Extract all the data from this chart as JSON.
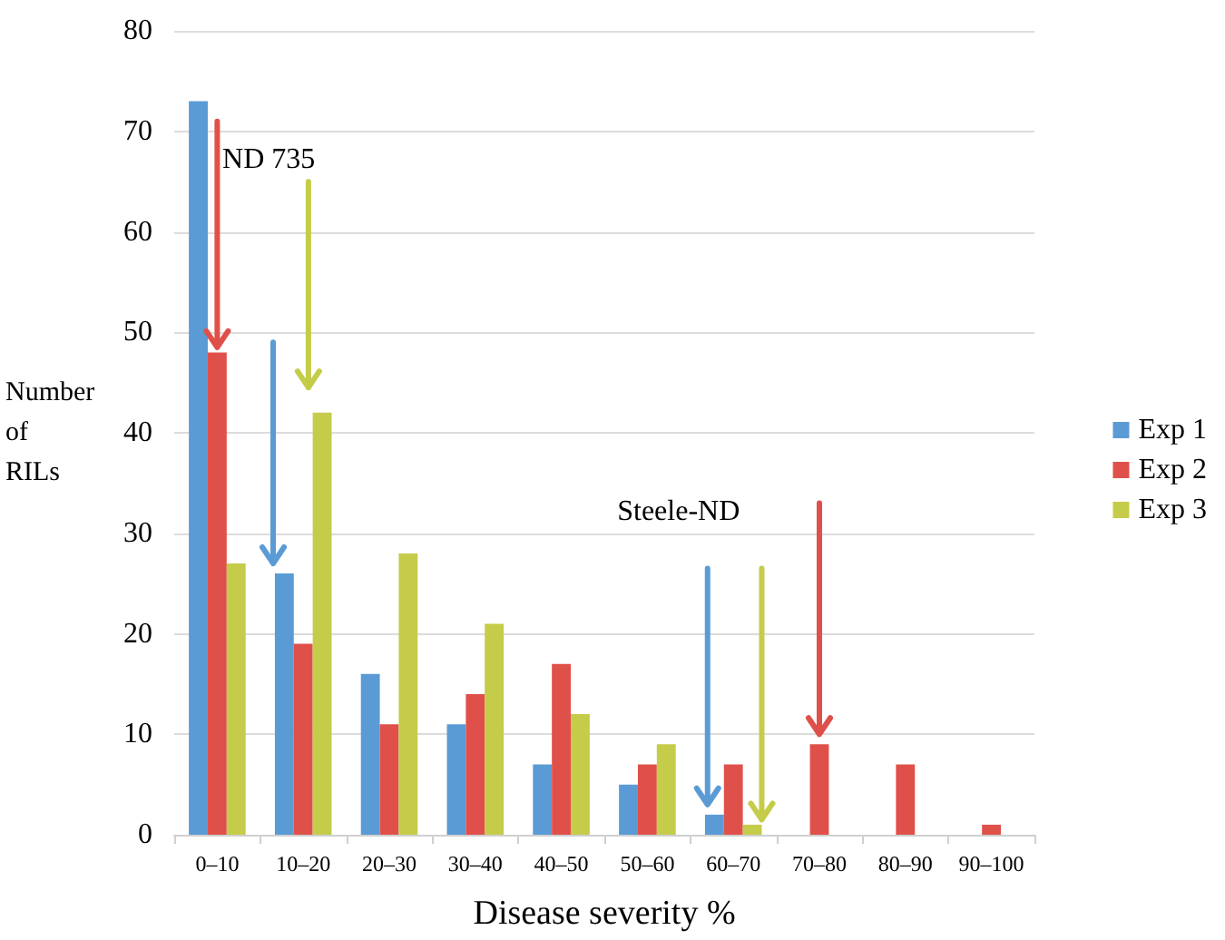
{
  "chart_data": {
    "type": "bar",
    "xlabel": "Disease severity %",
    "ylabel": "Number of RILs",
    "categories": [
      "0–10",
      "10–20",
      "20–30",
      "30–40",
      "40–50",
      "50–60",
      "60–70",
      "70–80",
      "80–90",
      "90–100"
    ],
    "series": [
      {
        "name": "Exp 1",
        "color": "#5b9bd5",
        "values": [
          73,
          26,
          16,
          11,
          7,
          5,
          2,
          0,
          0,
          0
        ]
      },
      {
        "name": "Exp 2",
        "color": "#e0504a",
        "values": [
          48,
          19,
          11,
          14,
          17,
          7,
          7,
          9,
          7,
          1
        ]
      },
      {
        "name": "Exp 3",
        "color": "#c4cc4a",
        "values": [
          27,
          42,
          28,
          21,
          12,
          9,
          1,
          0,
          0,
          0
        ]
      }
    ],
    "ylim": [
      0,
      80
    ],
    "yticks": [
      0,
      10,
      20,
      30,
      40,
      50,
      60,
      70,
      80
    ],
    "grid": "y",
    "legend": "right",
    "annotations": [
      {
        "text": "ND 735",
        "x": "0–10",
        "y": 48
      },
      "Steele-ND"
    ]
  }
}
